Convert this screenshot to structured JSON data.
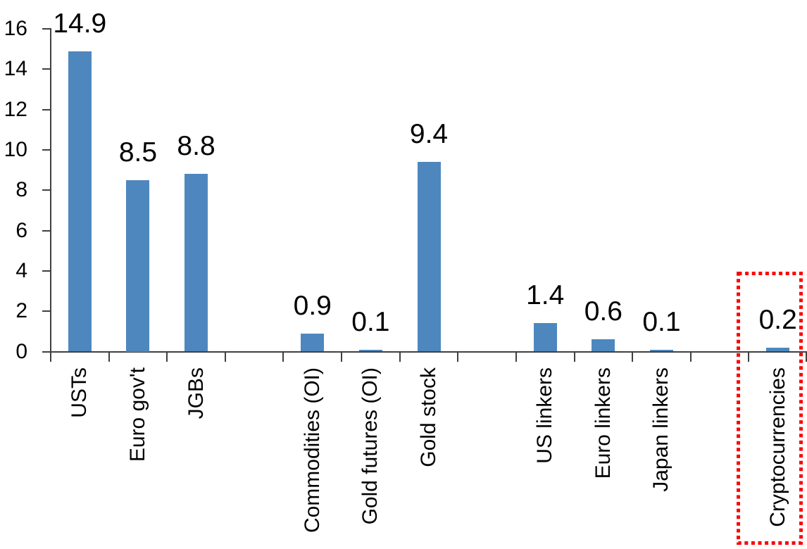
{
  "chart_data": {
    "type": "bar",
    "title": "",
    "xlabel": "",
    "ylabel": "",
    "categories": [
      "USTs",
      "Euro gov't",
      "JGBs",
      "Commodities (OI)",
      "Gold futures (OI)",
      "Gold stock",
      "US linkers",
      "Euro linkers",
      "Japan linkers",
      "Cryptocurrencies"
    ],
    "values": [
      14.9,
      8.5,
      8.8,
      0.9,
      0.1,
      9.4,
      1.4,
      0.6,
      0.1,
      0.2
    ],
    "data_labels": [
      "14.9",
      "8.5",
      "8.8",
      "0.9",
      "0.1",
      "9.4",
      "1.4",
      "0.6",
      "0.1",
      "0.2"
    ],
    "slot_indices": [
      0,
      1,
      2,
      4,
      5,
      6,
      8,
      9,
      10,
      12
    ],
    "total_slots": 13,
    "ylim": [
      0,
      16
    ],
    "yticks": [
      "16",
      "14",
      "12",
      "10",
      "8",
      "6",
      "4",
      "2",
      "0"
    ],
    "ytick_values": [
      16,
      14,
      12,
      10,
      8,
      6,
      4,
      2,
      0
    ],
    "grid": false,
    "legend_position": "none",
    "bar_color": "#4E87BD",
    "axis_color": "#404040",
    "text_color": "#000000",
    "highlight": {
      "category": "Cryptocurrencies",
      "value": 0.2,
      "style": "red-dotted-outline-box",
      "color": "#FE0000"
    }
  }
}
